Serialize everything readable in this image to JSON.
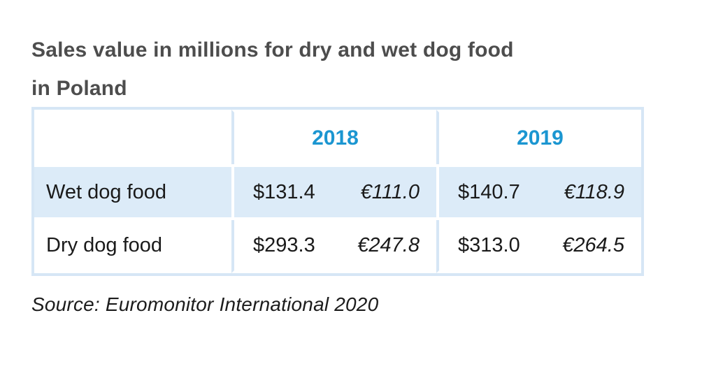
{
  "title": {
    "line1": "Sales value in millions for dry and wet dog food",
    "line2": "in Poland"
  },
  "source": "Source: Euromonitor International 2020",
  "table": {
    "years": [
      "2018",
      "2019"
    ],
    "rows": [
      {
        "label": "Wet dog food",
        "values": [
          "$131.4",
          "€111.0",
          "$140.7",
          "€118.9"
        ]
      },
      {
        "label": "Dry dog food",
        "values": [
          "$293.3",
          "€247.8",
          "$313.0",
          "€264.5"
        ]
      }
    ]
  },
  "colors": {
    "accent_blue": "#1b96d1",
    "row_fill": "#dcebf8",
    "table_border": "#d6e6f5",
    "title_gray": "#4d4d4d",
    "text": "#1a1a1a"
  },
  "chart_data": {
    "type": "table",
    "title": "Sales value in millions for dry and wet dog food in Poland",
    "source": "Source: Euromonitor International 2020",
    "unit": "millions",
    "columns": [
      "",
      "2018",
      "2019"
    ],
    "currency_note": "each year shows USD value and EUR value",
    "rows": [
      {
        "category": "Wet dog food",
        "usd_2018": 131.4,
        "eur_2018": 111.0,
        "usd_2019": 140.7,
        "eur_2019": 118.9
      },
      {
        "category": "Dry dog food",
        "usd_2018": 293.3,
        "eur_2018": 247.8,
        "usd_2019": 313.0,
        "eur_2019": 264.5
      }
    ]
  }
}
